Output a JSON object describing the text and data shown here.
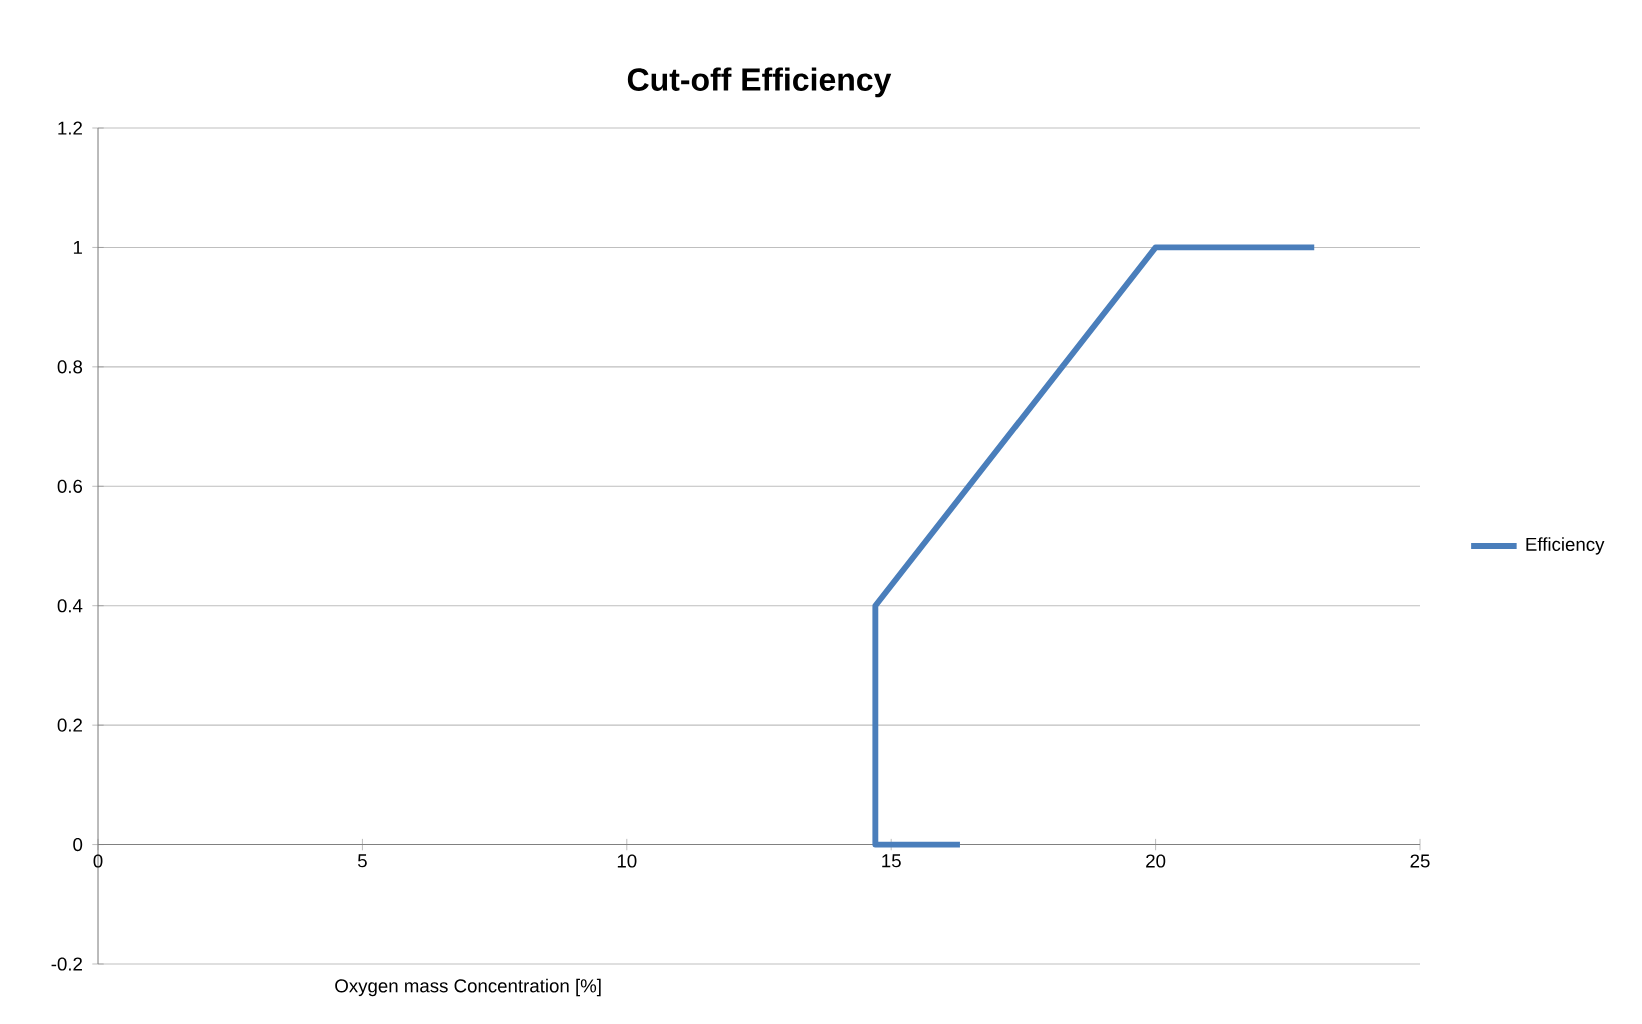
{
  "chart_data": {
    "type": "line",
    "title": "Cut-off Efficiency",
    "xlabel": "Oxygen mass Concentration [%]",
    "series": [
      {
        "name": "Efficiency",
        "color": "#4a7ebb",
        "x": [
          16.3,
          14.7,
          14.7,
          20,
          23
        ],
        "values": [
          0,
          0,
          0.4,
          1,
          1
        ]
      }
    ],
    "xlim": [
      0,
      25
    ],
    "xticks": [
      0,
      5,
      10,
      15,
      20,
      25
    ],
    "ylim": [
      -0.2,
      1.2
    ],
    "yticks": [
      -0.2,
      0,
      0.2,
      0.4,
      0.6,
      0.8,
      1,
      1.2
    ],
    "grid": "y",
    "legend": "right",
    "marker": "none",
    "line_style": "solid"
  }
}
